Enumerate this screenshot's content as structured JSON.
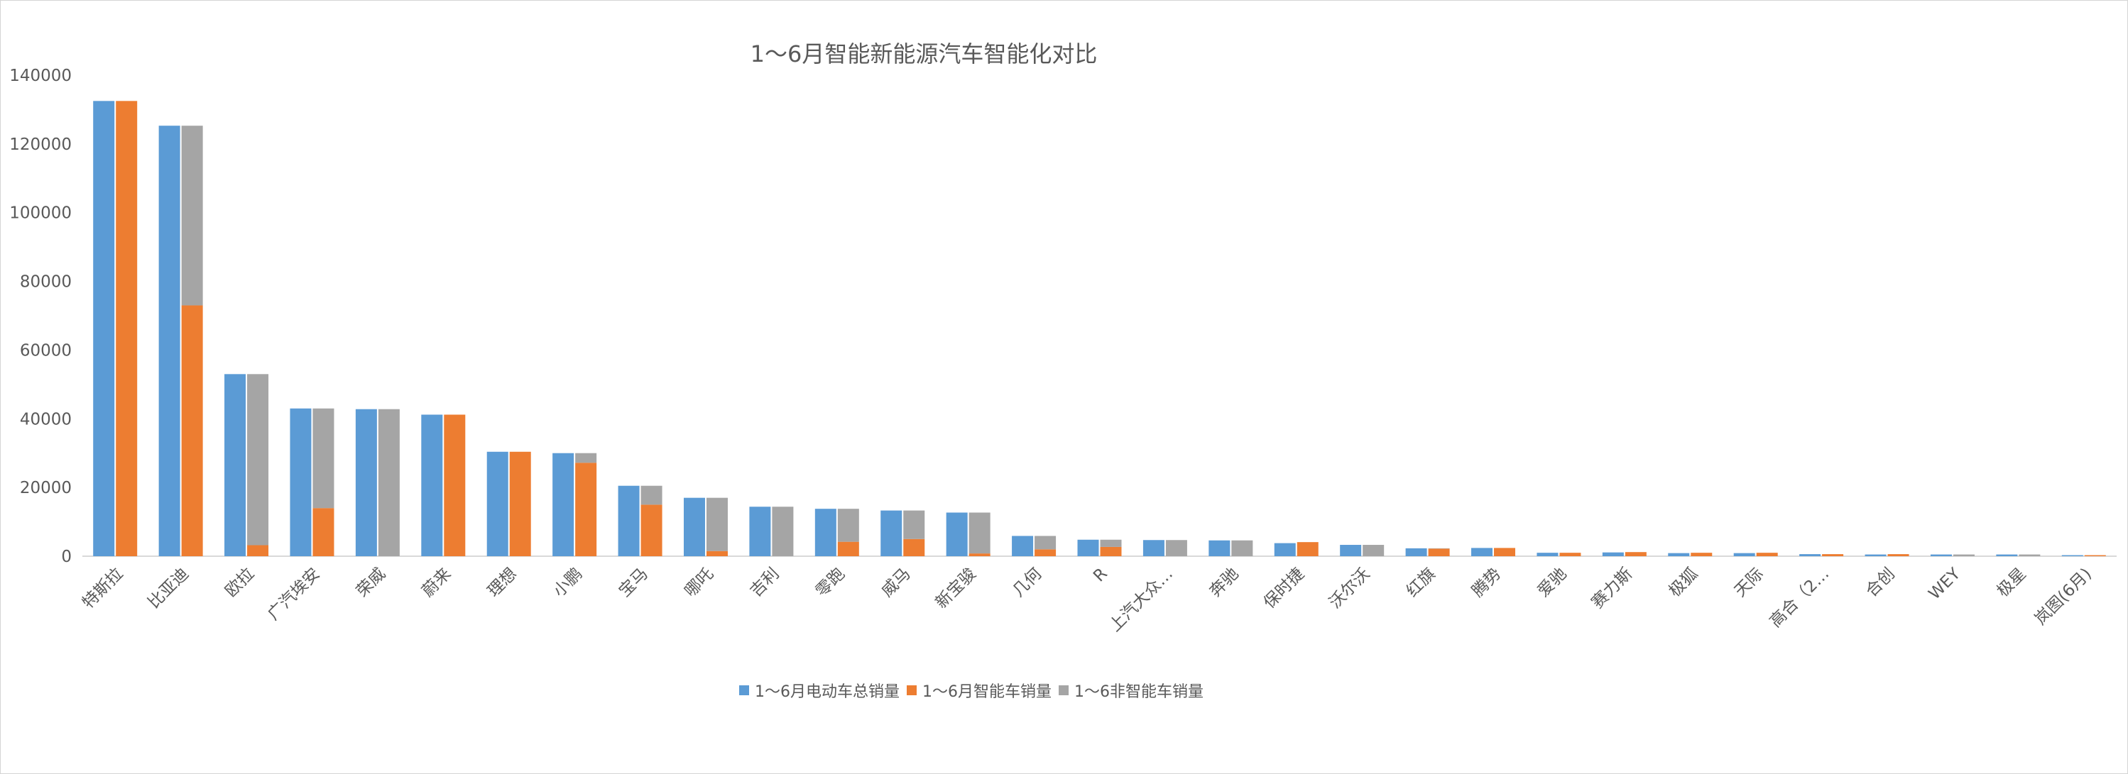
{
  "chart_data": {
    "type": "bar",
    "title": "1～6月智能新能源汽车智能化对比",
    "ylim": [
      0,
      140000
    ],
    "yticks": [
      0,
      20000,
      40000,
      60000,
      80000,
      100000,
      120000,
      140000
    ],
    "grid": false,
    "legend_position": "bottom",
    "categories": [
      "特斯拉",
      "比亚迪",
      "欧拉",
      "广汽埃安",
      "荣威",
      "蔚来",
      "理想",
      "小鹏",
      "宝马",
      "哪吒",
      "吉利",
      "零跑",
      "威马",
      "新宝骏",
      "几何",
      "R",
      "上汽大众…",
      "奔驰",
      "保时捷",
      "沃尔沃",
      "红旗",
      "腾势",
      "爱驰",
      "赛力斯",
      "极狐",
      "天际",
      "高合（2…",
      "合创",
      "WEY",
      "极星",
      "岚图(6月)"
    ],
    "series": [
      {
        "name": "1～6月电动车总销量",
        "color": "#5b9bd5",
        "stack": "a",
        "values": [
          132500,
          125300,
          53000,
          43000,
          42800,
          41200,
          30400,
          30000,
          20500,
          17000,
          14400,
          13800,
          13300,
          12700,
          5900,
          4800,
          4700,
          4600,
          3800,
          3300,
          2300,
          2400,
          1000,
          1100,
          900,
          900,
          600,
          500,
          500,
          500,
          300
        ]
      },
      {
        "name": "1～6月智能车销量",
        "color": "#ed7d31",
        "stack": "b",
        "values": [
          132500,
          73000,
          3200,
          14000,
          0,
          41200,
          30400,
          27200,
          15000,
          1500,
          0,
          4200,
          5000,
          800,
          2000,
          2700,
          0,
          0,
          4100,
          0,
          2200,
          2400,
          1000,
          1200,
          1000,
          1000,
          600,
          600,
          0,
          0,
          300
        ]
      },
      {
        "name": "1～6非智能车销量",
        "color": "#a5a5a5",
        "stack": "b",
        "values": [
          0,
          52300,
          49800,
          29000,
          42800,
          0,
          0,
          2800,
          5500,
          15500,
          14400,
          9600,
          8300,
          11900,
          3900,
          2100,
          4700,
          4600,
          0,
          3300,
          100,
          0,
          0,
          0,
          0,
          0,
          0,
          0,
          500,
          500,
          0
        ]
      }
    ]
  }
}
